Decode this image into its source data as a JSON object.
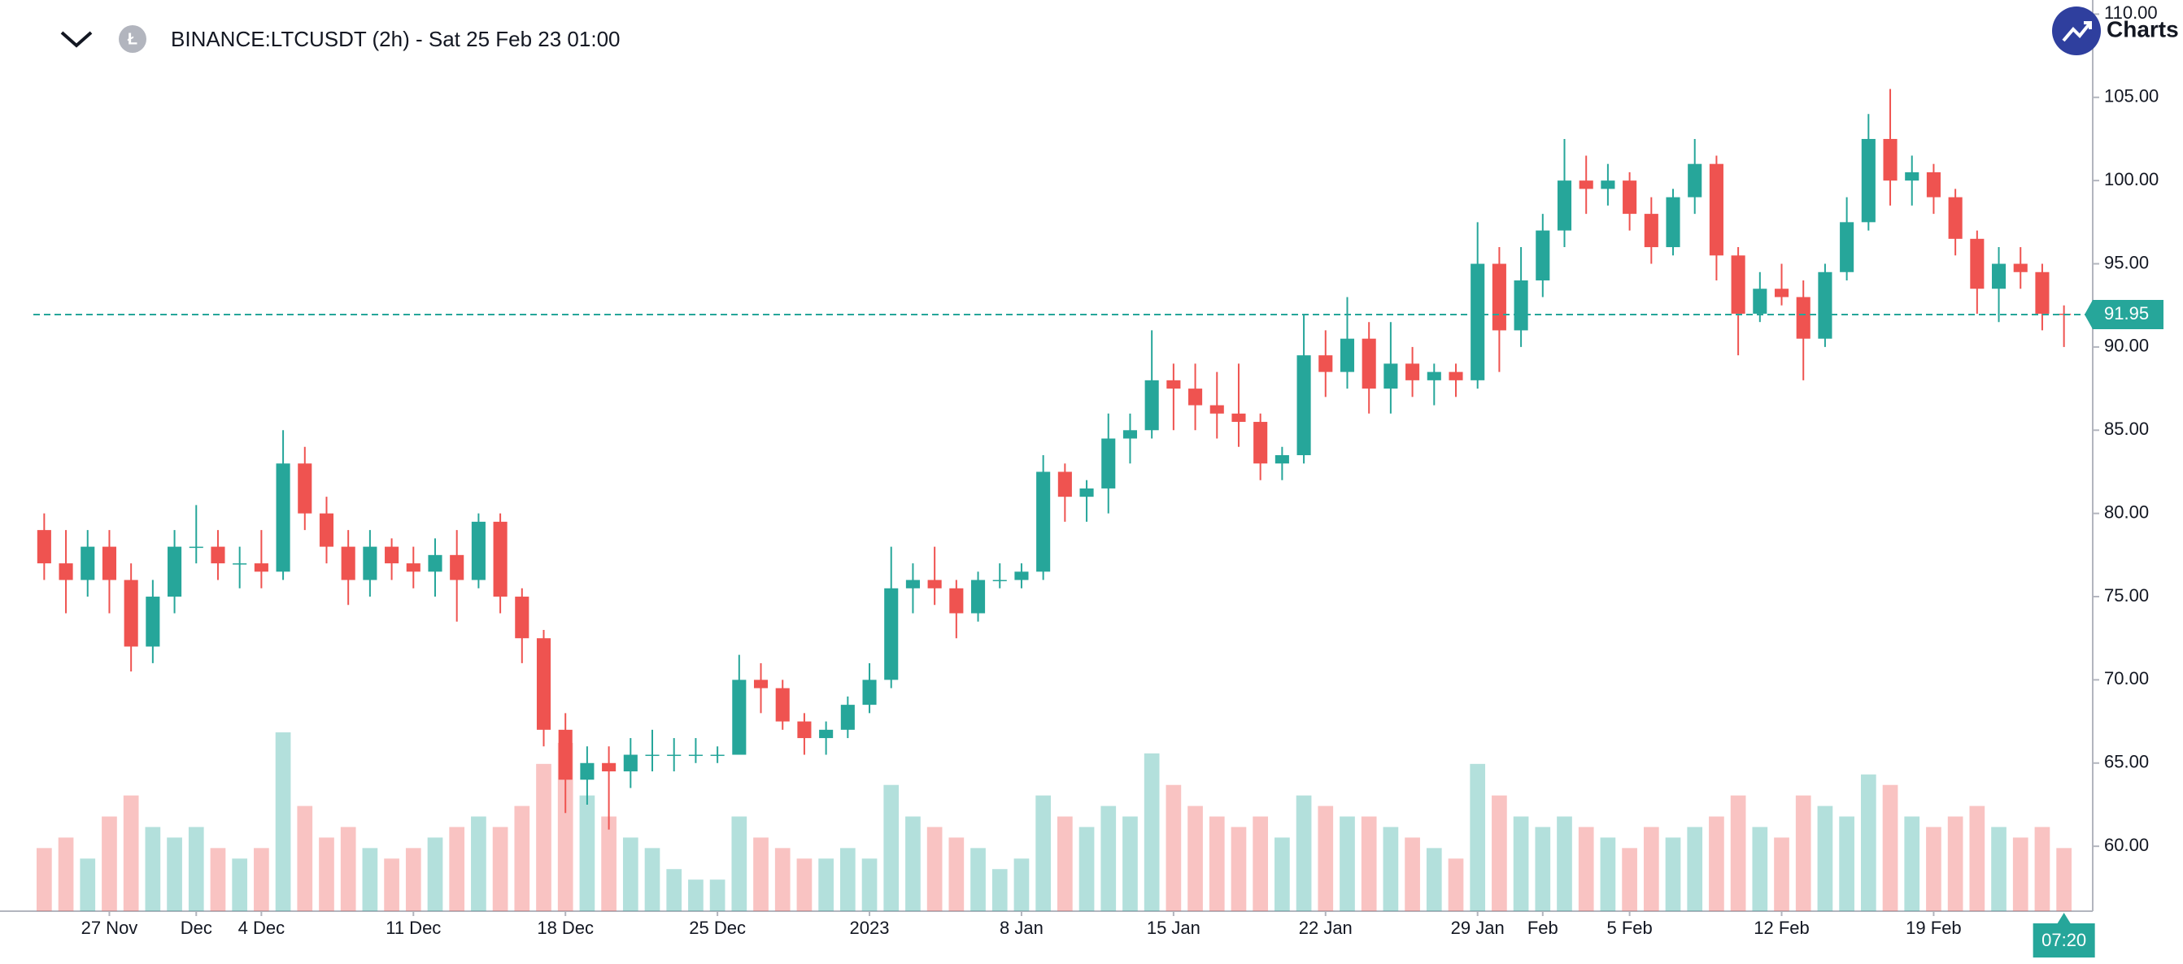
{
  "header": {
    "symbol": "BINANCE:LTCUSDT (2h) - Sat 25 Feb 23 01:00",
    "brand": "Charts"
  },
  "chart_data": {
    "type": "candlestick",
    "categories": [
      null,
      null,
      null,
      "27 Nov",
      null,
      null,
      null,
      "Dec",
      null,
      null,
      "4 Dec",
      null,
      null,
      null,
      null,
      null,
      null,
      "11 Dec",
      null,
      null,
      null,
      null,
      null,
      null,
      "18 Dec",
      null,
      null,
      null,
      null,
      null,
      null,
      "25 Dec",
      null,
      null,
      null,
      null,
      null,
      null,
      "2023",
      null,
      null,
      null,
      null,
      null,
      null,
      "8 Jan",
      null,
      null,
      null,
      null,
      null,
      null,
      "15 Jan",
      null,
      null,
      null,
      null,
      null,
      null,
      "22 Jan",
      null,
      null,
      null,
      null,
      null,
      null,
      "29 Jan",
      null,
      null,
      "Feb",
      null,
      null,
      null,
      "5 Feb",
      null,
      null,
      null,
      null,
      null,
      null,
      "12 Feb",
      null,
      null,
      null,
      null,
      null,
      null,
      "19 Feb",
      null,
      null,
      null,
      null,
      null,
      null
    ],
    "open": [
      79,
      77,
      76,
      78,
      76,
      72,
      75,
      78,
      78,
      77,
      77,
      76.5,
      83,
      80,
      78,
      76,
      78,
      77,
      76.5,
      77.5,
      76,
      79.5,
      75,
      72.5,
      67,
      64,
      65,
      64.5,
      65.5,
      65.5,
      65.5,
      65.5,
      65.5,
      70,
      69.5,
      67.5,
      66.5,
      67,
      68.5,
      70,
      75.5,
      76,
      75.5,
      74,
      76,
      76,
      76.5,
      82.5,
      81,
      81.5,
      84.5,
      85,
      88,
      87.5,
      86.5,
      86,
      85.5,
      83,
      83.5,
      89.5,
      88.5,
      90.5,
      87.5,
      89,
      88,
      88.5,
      88,
      95,
      91,
      94,
      97,
      100,
      99.5,
      100,
      98,
      96,
      99,
      101,
      95.5,
      92,
      93.5,
      93,
      90.5,
      94.5,
      97.5,
      102.5,
      100,
      100.5,
      99,
      96.5,
      93.5,
      95,
      94.5,
      92
    ],
    "high": [
      80,
      79,
      79,
      79,
      77,
      76,
      79,
      80.5,
      79,
      78,
      79,
      85,
      84,
      81,
      79,
      79,
      78.5,
      78,
      78.5,
      79,
      80,
      80,
      75.5,
      73,
      68,
      66,
      66,
      66.5,
      67,
      66.5,
      66.5,
      66,
      71.5,
      71,
      70,
      68,
      67.5,
      69,
      71,
      78,
      77,
      78,
      76,
      76.5,
      77,
      77,
      83.5,
      83,
      82,
      86,
      86,
      91,
      89,
      89,
      88.5,
      89,
      86,
      84,
      92,
      91,
      93,
      91.5,
      91.5,
      90,
      89,
      89,
      97.5,
      96,
      96,
      98,
      102.5,
      101.5,
      101,
      100.5,
      99,
      99.5,
      102.5,
      101.5,
      96,
      94.5,
      95,
      94,
      95,
      99,
      104,
      105.5,
      101.5,
      101,
      99.5,
      97,
      96,
      96,
      95,
      92.5
    ],
    "low": [
      76,
      74,
      75,
      74,
      70.5,
      71,
      74,
      77,
      76,
      75.5,
      75.5,
      76,
      79,
      77,
      74.5,
      75,
      76,
      75.5,
      75,
      73.5,
      75.5,
      74,
      71,
      66,
      62,
      62.5,
      61,
      63.5,
      64.5,
      64.5,
      65,
      65,
      65.5,
      68,
      67,
      65.5,
      65.5,
      66.5,
      68,
      69.5,
      74,
      74.5,
      72.5,
      73.5,
      75.5,
      75.5,
      76,
      79.5,
      79.5,
      80,
      83,
      84.5,
      85,
      85,
      84.5,
      84,
      82,
      82,
      83,
      87,
      87.5,
      86,
      86,
      87,
      86.5,
      87,
      87.5,
      88.5,
      90,
      93,
      96,
      98,
      98.5,
      97,
      95,
      95.5,
      98,
      94,
      89.5,
      91.5,
      92.5,
      88,
      90,
      94,
      97,
      98.5,
      98.5,
      98,
      95.5,
      92,
      91.5,
      93.5,
      91,
      90
    ],
    "close": [
      77,
      76,
      78,
      76,
      72,
      75,
      78,
      78,
      77,
      77,
      76.5,
      83,
      80,
      78,
      76,
      78,
      77,
      76.5,
      77.5,
      76,
      79.5,
      75,
      72.5,
      67,
      64,
      65,
      64.5,
      65.5,
      65.5,
      65.5,
      65.5,
      65.5,
      70,
      69.5,
      67.5,
      66.5,
      67,
      68.5,
      70,
      75.5,
      76,
      75.5,
      74,
      76,
      76,
      76.5,
      82.5,
      81,
      81.5,
      84.5,
      85,
      88,
      87.5,
      86.5,
      86,
      85.5,
      83,
      83.5,
      89.5,
      88.5,
      90.5,
      87.5,
      89,
      88,
      88.5,
      88,
      95,
      91,
      94,
      97,
      100,
      99.5,
      100,
      98,
      96,
      99,
      101,
      95.5,
      92,
      93.5,
      93,
      90.5,
      94.5,
      97.5,
      102.5,
      100,
      100.5,
      99,
      96.5,
      93.5,
      95,
      94.5,
      92,
      91.95
    ],
    "volume": [
      30,
      35,
      25,
      45,
      55,
      40,
      35,
      40,
      30,
      25,
      30,
      85,
      50,
      35,
      40,
      30,
      25,
      30,
      35,
      40,
      45,
      40,
      50,
      70,
      80,
      55,
      45,
      35,
      30,
      20,
      15,
      15,
      45,
      35,
      30,
      25,
      25,
      30,
      25,
      60,
      45,
      40,
      35,
      30,
      20,
      25,
      55,
      45,
      40,
      50,
      45,
      75,
      60,
      50,
      45,
      40,
      45,
      35,
      55,
      50,
      45,
      45,
      40,
      35,
      30,
      25,
      70,
      55,
      45,
      40,
      45,
      40,
      35,
      30,
      40,
      35,
      40,
      45,
      55,
      40,
      35,
      55,
      50,
      45,
      65,
      60,
      45,
      40,
      45,
      50,
      40,
      35,
      40,
      30
    ],
    "up_color": "#26a69a",
    "down_color": "#ef5350",
    "ylim": [
      56.1,
      110.85
    ],
    "yticks": [
      {
        "value": 60,
        "label": "60.00"
      },
      {
        "value": 65,
        "label": "65.00"
      },
      {
        "value": 70,
        "label": "70.00"
      },
      {
        "value": 75,
        "label": "75.00"
      },
      {
        "value": 80,
        "label": "80.00"
      },
      {
        "value": 85,
        "label": "85.00"
      },
      {
        "value": 90,
        "label": "90.00"
      },
      {
        "value": 95,
        "label": "95.00"
      },
      {
        "value": 100,
        "label": "100.00"
      },
      {
        "value": 105,
        "label": "105.00"
      },
      {
        "value": 110,
        "label": "110.00"
      }
    ],
    "last_price": 91.95,
    "countdown": "07:20"
  }
}
